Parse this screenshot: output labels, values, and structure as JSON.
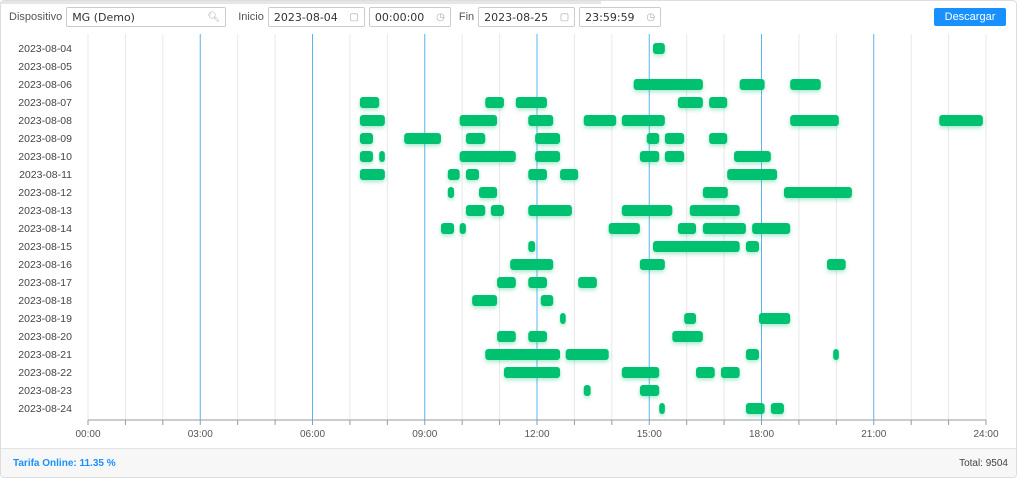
{
  "toolbar": {
    "device_label": "Dispositivo",
    "device_value": "MG (Demo)",
    "device_icon": "search-icon",
    "start_label": "Inicio",
    "start_date": "2023-08-04",
    "start_time": "00:00:00",
    "end_label": "Fin",
    "end_date": "2023-08-25",
    "end_time": "23:59:59",
    "download_label": "Descargar"
  },
  "footer": {
    "tarifa": "Tarifa Online: 11.35 %",
    "total": "Total: 9504"
  },
  "colors": {
    "bar": "#00c170",
    "major_grid": "#5ab4f0",
    "minor_grid": "#e8e8e8",
    "button": "#1890ff"
  },
  "chart_data": {
    "type": "timeline",
    "xlim": [
      "00:00",
      "24:00"
    ],
    "xticks": [
      "00:00",
      "03:00",
      "06:00",
      "09:00",
      "12:00",
      "15:00",
      "18:00",
      "21:00",
      "24:00"
    ],
    "grid": true,
    "rows": [
      {
        "date": "2023-08-04",
        "bars": [
          [
            "15:06",
            "15:25"
          ]
        ]
      },
      {
        "date": "2023-08-05",
        "bars": []
      },
      {
        "date": "2023-08-06",
        "bars": [
          [
            "14:35",
            "16:26"
          ],
          [
            "17:25",
            "18:05"
          ],
          [
            "18:46",
            "19:35"
          ]
        ]
      },
      {
        "date": "2023-08-07",
        "bars": [
          [
            "07:16",
            "07:47"
          ],
          [
            "10:37",
            "11:07"
          ],
          [
            "11:26",
            "12:16"
          ],
          [
            "15:46",
            "16:26"
          ],
          [
            "16:36",
            "17:05"
          ]
        ]
      },
      {
        "date": "2023-08-08",
        "bars": [
          [
            "07:16",
            "07:56"
          ],
          [
            "09:56",
            "10:56"
          ],
          [
            "11:46",
            "12:26"
          ],
          [
            "13:15",
            "14:07"
          ],
          [
            "14:16",
            "15:25"
          ],
          [
            "18:46",
            "20:04"
          ],
          [
            "22:45",
            "23:55"
          ]
        ]
      },
      {
        "date": "2023-08-09",
        "bars": [
          [
            "07:16",
            "07:37"
          ],
          [
            "08:27",
            "09:26"
          ],
          [
            "10:06",
            "10:37"
          ],
          [
            "11:57",
            "12:37"
          ],
          [
            "14:56",
            "15:16"
          ],
          [
            "15:25",
            "15:56"
          ],
          [
            "16:36",
            "17:05"
          ]
        ]
      },
      {
        "date": "2023-08-10",
        "bars": [
          [
            "07:16",
            "07:37"
          ],
          [
            "07:47",
            "07:56"
          ],
          [
            "09:56",
            "11:26"
          ],
          [
            "11:57",
            "12:37"
          ],
          [
            "14:45",
            "15:16"
          ],
          [
            "15:25",
            "15:56"
          ],
          [
            "17:16",
            "18:15"
          ]
        ]
      },
      {
        "date": "2023-08-11",
        "bars": [
          [
            "07:16",
            "07:56"
          ],
          [
            "09:37",
            "09:56"
          ],
          [
            "10:06",
            "10:27"
          ],
          [
            "11:46",
            "12:16"
          ],
          [
            "12:37",
            "13:06"
          ],
          [
            "17:05",
            "18:25"
          ]
        ]
      },
      {
        "date": "2023-08-12",
        "bars": [
          [
            "09:37",
            "09:47"
          ],
          [
            "10:27",
            "10:56"
          ],
          [
            "16:26",
            "17:06"
          ],
          [
            "18:36",
            "20:25"
          ]
        ]
      },
      {
        "date": "2023-08-13",
        "bars": [
          [
            "10:06",
            "10:37"
          ],
          [
            "10:46",
            "11:07"
          ],
          [
            "11:46",
            "12:56"
          ],
          [
            "14:16",
            "15:37"
          ],
          [
            "16:05",
            "17:25"
          ]
        ]
      },
      {
        "date": "2023-08-14",
        "bars": [
          [
            "09:26",
            "09:47"
          ],
          [
            "09:56",
            "10:06"
          ],
          [
            "13:55",
            "14:45"
          ],
          [
            "15:46",
            "16:15"
          ],
          [
            "16:26",
            "17:35"
          ],
          [
            "17:45",
            "18:46"
          ]
        ]
      },
      {
        "date": "2023-08-15",
        "bars": [
          [
            "11:46",
            "11:57"
          ],
          [
            "15:06",
            "17:25"
          ],
          [
            "17:35",
            "17:56"
          ]
        ]
      },
      {
        "date": "2023-08-16",
        "bars": [
          [
            "11:17",
            "12:26"
          ],
          [
            "14:45",
            "15:25"
          ],
          [
            "19:45",
            "20:15"
          ]
        ]
      },
      {
        "date": "2023-08-17",
        "bars": [
          [
            "10:56",
            "11:26"
          ],
          [
            "11:46",
            "12:16"
          ],
          [
            "13:06",
            "13:36"
          ]
        ]
      },
      {
        "date": "2023-08-18",
        "bars": [
          [
            "10:16",
            "10:56"
          ],
          [
            "12:06",
            "12:26"
          ]
        ]
      },
      {
        "date": "2023-08-19",
        "bars": [
          [
            "12:37",
            "12:46"
          ],
          [
            "15:56",
            "16:15"
          ],
          [
            "17:56",
            "18:46"
          ]
        ]
      },
      {
        "date": "2023-08-20",
        "bars": [
          [
            "10:56",
            "11:26"
          ],
          [
            "11:46",
            "12:16"
          ],
          [
            "15:37",
            "16:26"
          ]
        ]
      },
      {
        "date": "2023-08-21",
        "bars": [
          [
            "10:37",
            "12:37"
          ],
          [
            "12:46",
            "13:55"
          ],
          [
            "17:35",
            "17:56"
          ],
          [
            "19:55",
            "20:04"
          ]
        ]
      },
      {
        "date": "2023-08-22",
        "bars": [
          [
            "11:07",
            "12:37"
          ],
          [
            "14:16",
            "15:16"
          ],
          [
            "16:15",
            "16:45"
          ],
          [
            "16:55",
            "17:25"
          ]
        ]
      },
      {
        "date": "2023-08-23",
        "bars": [
          [
            "13:15",
            "13:26"
          ],
          [
            "14:45",
            "15:16"
          ]
        ]
      },
      {
        "date": "2023-08-24",
        "bars": [
          [
            "15:16",
            "15:25"
          ],
          [
            "17:35",
            "18:05"
          ],
          [
            "18:15",
            "18:36"
          ]
        ]
      }
    ]
  }
}
